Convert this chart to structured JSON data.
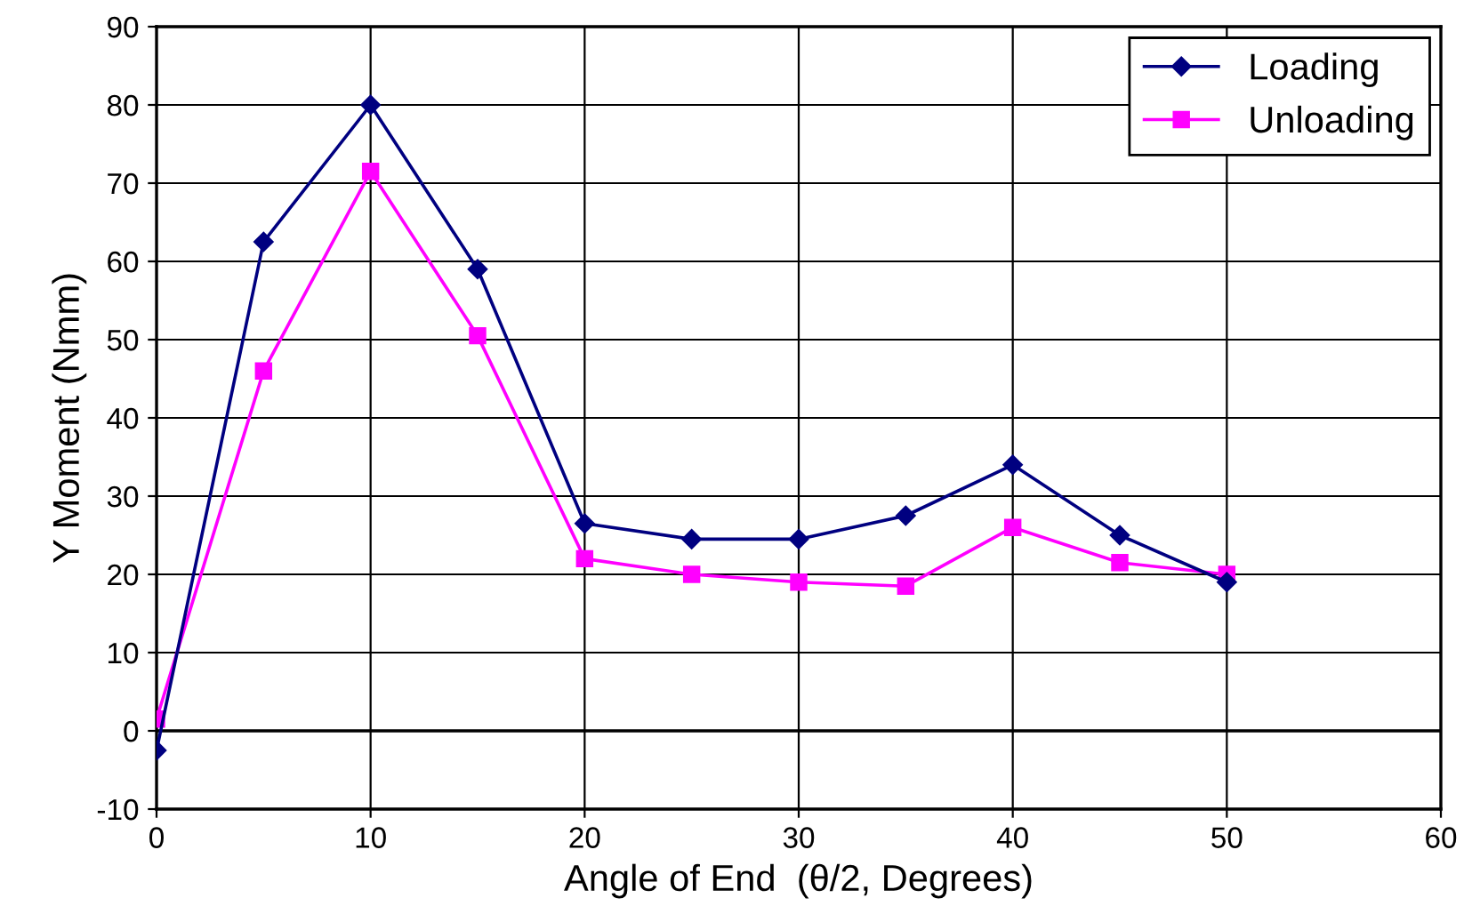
{
  "chart_data": {
    "type": "line",
    "xlabel": "Angle of End  (θ/2, Degrees)",
    "ylabel": "Y Moment (Nmm)",
    "x": [
      0,
      5,
      10,
      15,
      20,
      25,
      30,
      35,
      40,
      45,
      50
    ],
    "series": [
      {
        "name": "Loading",
        "color": "#000080",
        "marker": "diamond",
        "values": [
          -2.5,
          62.5,
          80,
          59,
          26.5,
          24.5,
          24.5,
          27.5,
          34,
          25,
          19
        ]
      },
      {
        "name": "Unloading",
        "color": "#ff00ff",
        "marker": "square",
        "values": [
          1.5,
          46,
          71.5,
          50.5,
          22,
          20,
          19,
          18.5,
          26,
          21.5,
          20
        ]
      }
    ],
    "xlim": [
      0,
      60
    ],
    "xticks": [
      0,
      10,
      20,
      30,
      40,
      50,
      60
    ],
    "ylim": [
      -10,
      90
    ],
    "yticks": [
      -10,
      0,
      10,
      20,
      30,
      40,
      50,
      60,
      70,
      80,
      90
    ],
    "grid": true,
    "legend": "top right",
    "line_style": "solid"
  }
}
